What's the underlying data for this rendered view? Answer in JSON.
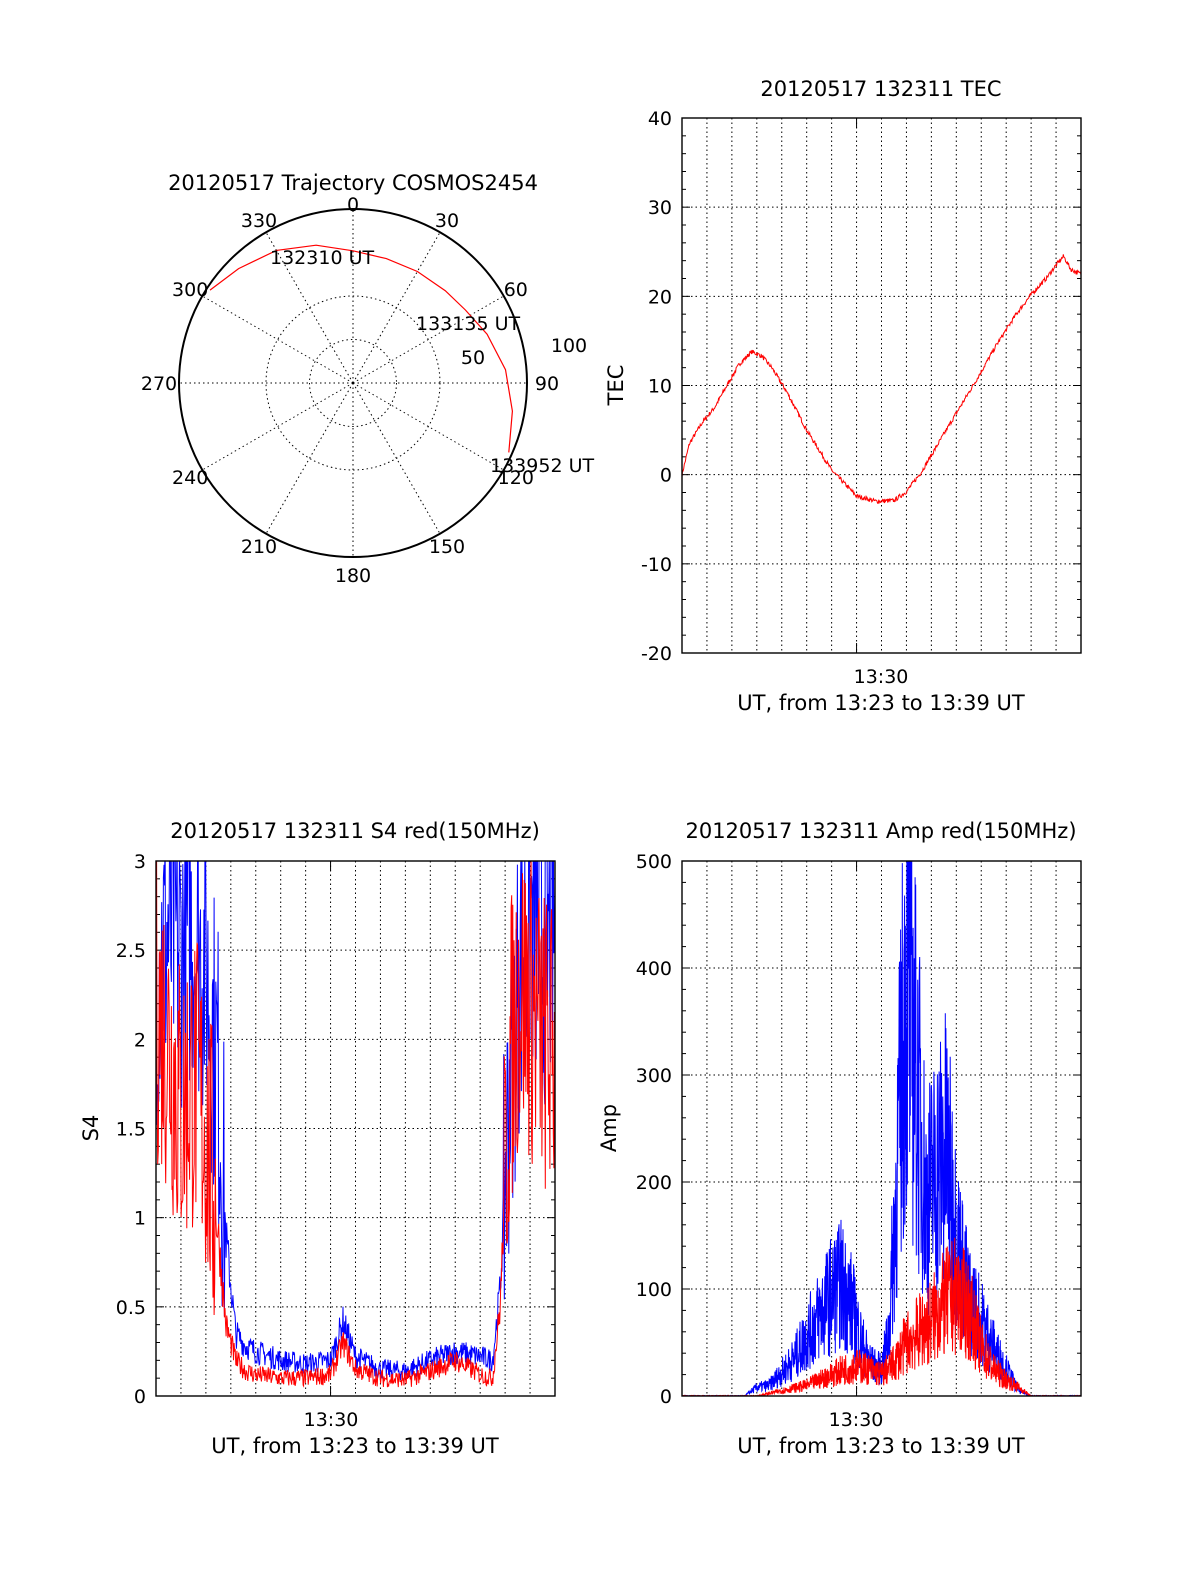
{
  "chart_data": [
    {
      "type": "polar",
      "title": "20120517 Trajectory COSMOS2454",
      "angle_labels": [
        "0",
        "30",
        "60",
        "90",
        "120",
        "150",
        "180",
        "210",
        "240",
        "270",
        "300",
        "330"
      ],
      "radial_labels": [
        "50",
        "100"
      ],
      "rlim": [
        0,
        100
      ],
      "grid": true,
      "series": [
        {
          "color": "#ff0000",
          "points_az_deg_r": [
            [
              303,
              98
            ],
            [
              315,
              93
            ],
            [
              330,
              88
            ],
            [
              345,
              82
            ],
            [
              360,
              76
            ],
            [
              15,
              74
            ],
            [
              30,
              74
            ],
            [
              45,
              75
            ],
            [
              57,
              77
            ],
            [
              70,
              82
            ],
            [
              85,
              88
            ],
            [
              100,
              93
            ],
            [
              114,
              98
            ]
          ]
        }
      ],
      "annotations": [
        "132310 UT",
        "133135 UT",
        "133952 UT"
      ]
    },
    {
      "type": "line",
      "title": "20120517 132311 TEC",
      "xlabel": "UT, from 13:23 to 13:39 UT",
      "ylabel": "TEC",
      "xlim": [
        0,
        16
      ],
      "ylim": [
        -20,
        40
      ],
      "yticks": [
        -20,
        -10,
        0,
        10,
        20,
        30,
        40
      ],
      "xtick_labels": [
        {
          "x": 7,
          "label": "13:30"
        }
      ],
      "grid": true,
      "series": [
        {
          "color": "#ff0000",
          "x": [
            0,
            0.3,
            0.8,
            1.3,
            1.8,
            2.3,
            2.8,
            3.2,
            3.6,
            4.2,
            5,
            6,
            7,
            7.8,
            8.5,
            9,
            9.6,
            10.3,
            11,
            11.8,
            12.6,
            13.4,
            14,
            14.6,
            15,
            15.3,
            15.6,
            16
          ],
          "y": [
            0,
            3.5,
            5.8,
            7.5,
            10,
            12.4,
            13.8,
            13.3,
            12,
            9.3,
            5,
            0.5,
            -2.4,
            -3,
            -2.9,
            -1.9,
            0.3,
            3.6,
            6.9,
            10.6,
            14.5,
            18,
            20.2,
            22,
            23.5,
            24.5,
            23,
            22.5
          ]
        }
      ]
    },
    {
      "type": "line",
      "title": "20120517 132311 S4 red(150MHz)",
      "xlabel": "UT, from 13:23 to 13:39 UT",
      "ylabel": "S4",
      "xlim": [
        0,
        16
      ],
      "ylim": [
        0,
        3
      ],
      "yticks": [
        0,
        0.5,
        1,
        1.5,
        2,
        2.5,
        3
      ],
      "ytick_labels": [
        "0",
        "0.5",
        "1",
        "1.5",
        "2",
        "2.5",
        "3"
      ],
      "xtick_labels": [
        {
          "x": 7,
          "label": "13:30"
        }
      ],
      "grid": true,
      "series": [
        {
          "color": "#0000ff",
          "x": [
            0,
            0.5,
            1,
            1.5,
            2,
            2.5,
            2.8,
            3.2,
            3.6,
            4,
            5,
            6,
            7,
            7.5,
            8,
            9,
            10,
            11,
            12,
            13,
            13.5,
            13.8,
            14.2,
            14.6,
            15,
            15.5,
            16
          ],
          "y": [
            2.4,
            2.6,
            2.5,
            2.6,
            2.4,
            1.8,
            0.9,
            0.35,
            0.28,
            0.25,
            0.2,
            0.18,
            0.2,
            0.42,
            0.22,
            0.15,
            0.14,
            0.2,
            0.25,
            0.22,
            0.2,
            0.6,
            1.8,
            2.4,
            2.7,
            2.5,
            2.6
          ]
        },
        {
          "color": "#ff0000",
          "x": [
            0,
            0.5,
            1,
            1.5,
            2,
            2.5,
            2.8,
            3.2,
            3.6,
            4,
            5,
            6,
            7,
            7.5,
            8,
            9,
            10,
            11,
            12,
            13,
            13.5,
            13.8,
            14.2,
            14.6,
            15,
            15.5,
            16
          ],
          "y": [
            2.2,
            2.0,
            1.6,
            1.8,
            1.5,
            0.9,
            0.4,
            0.2,
            0.14,
            0.12,
            0.1,
            0.1,
            0.12,
            0.3,
            0.15,
            0.1,
            0.09,
            0.14,
            0.2,
            0.12,
            0.1,
            0.5,
            1.9,
            2.3,
            2.2,
            2.0,
            1.9
          ]
        }
      ]
    },
    {
      "type": "line",
      "title": "20120517 132311 Amp red(150MHz)",
      "xlabel": "UT, from 13:23 to 13:39 UT",
      "ylabel": "Amp",
      "xlim": [
        0,
        16
      ],
      "ylim": [
        0,
        500
      ],
      "yticks": [
        0,
        100,
        200,
        300,
        400,
        500
      ],
      "xtick_labels": [
        {
          "x": 7,
          "label": "13:30"
        }
      ],
      "grid": true,
      "series": [
        {
          "color": "#0000ff",
          "x": [
            0,
            2.5,
            3,
            3.5,
            4,
            4.5,
            5,
            5.5,
            6,
            6.4,
            6.8,
            7.2,
            7.6,
            8,
            8.3,
            8.6,
            9,
            9.4,
            9.8,
            10.2,
            10.6,
            11,
            11.5,
            12,
            12.5,
            13,
            13.5,
            14,
            16
          ],
          "y": [
            0,
            0,
            8,
            10,
            22,
            35,
            55,
            75,
            95,
            105,
            85,
            50,
            30,
            25,
            60,
            200,
            400,
            300,
            180,
            210,
            230,
            150,
            90,
            70,
            45,
            25,
            5,
            0,
            0
          ]
        },
        {
          "color": "#ff0000",
          "x": [
            0,
            3,
            4,
            5,
            5.5,
            6,
            6.5,
            7,
            7.5,
            8,
            8.5,
            9,
            9.5,
            10,
            10.5,
            11,
            11.5,
            12,
            12.5,
            13,
            13.5,
            14,
            16
          ],
          "y": [
            0,
            0,
            5,
            10,
            15,
            20,
            25,
            28,
            25,
            20,
            30,
            50,
            60,
            70,
            85,
            95,
            80,
            45,
            25,
            15,
            8,
            0,
            0
          ]
        }
      ]
    }
  ]
}
